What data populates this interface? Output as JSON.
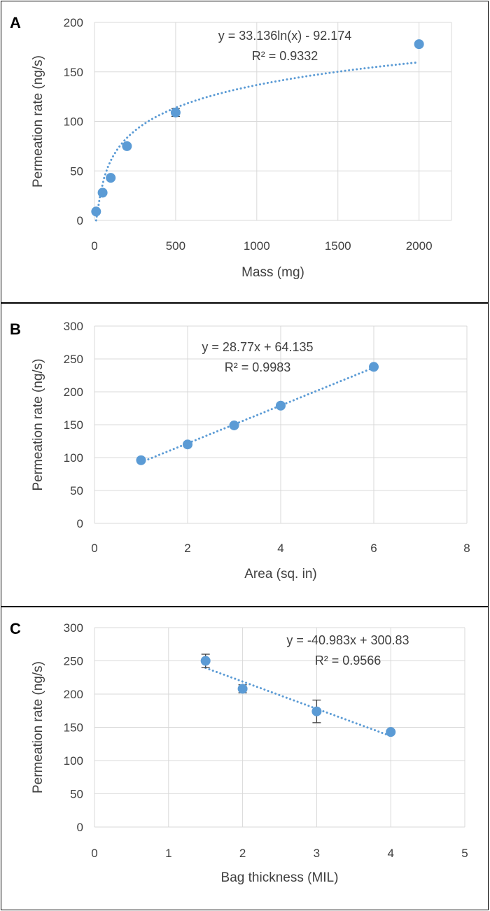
{
  "chart_data": [
    {
      "type": "scatter",
      "panel_label": "A",
      "xlabel": "Mass (mg)",
      "ylabel": "Permeation rate (ng/s)",
      "xlim": [
        0,
        2200
      ],
      "ylim": [
        0,
        200
      ],
      "xticks": [
        0,
        500,
        1000,
        1500,
        2000
      ],
      "yticks": [
        0,
        50,
        100,
        150,
        200
      ],
      "grid": true,
      "marker_color": "#5b9bd5",
      "points": [
        {
          "x": 10,
          "y": 9
        },
        {
          "x": 50,
          "y": 28
        },
        {
          "x": 100,
          "y": 43
        },
        {
          "x": 200,
          "y": 75
        },
        {
          "x": 500,
          "y": 109,
          "err": 4
        },
        {
          "x": 2000,
          "y": 178
        }
      ],
      "trendline": {
        "type": "log",
        "a": 33.136,
        "b": -92.174,
        "x_from": 10,
        "x_to": 2000
      },
      "equation": "y = 33.136ln(x) - 92.174",
      "r2": "R² = 0.9332"
    },
    {
      "type": "scatter",
      "panel_label": "B",
      "xlabel": "Area (sq. in)",
      "ylabel": "Permeation rate (ng/s)",
      "xlim": [
        0,
        8
      ],
      "ylim": [
        0,
        300
      ],
      "xticks": [
        0,
        2,
        4,
        6,
        8
      ],
      "yticks": [
        0,
        50,
        100,
        150,
        200,
        250,
        300
      ],
      "grid": true,
      "marker_color": "#5b9bd5",
      "points": [
        {
          "x": 1,
          "y": 96
        },
        {
          "x": 2,
          "y": 120
        },
        {
          "x": 3,
          "y": 149
        },
        {
          "x": 4,
          "y": 179
        },
        {
          "x": 6,
          "y": 238
        }
      ],
      "trendline": {
        "type": "linear",
        "m": 28.77,
        "b": 64.135,
        "x_from": 1,
        "x_to": 6
      },
      "equation": "y = 28.77x + 64.135",
      "r2": "R² = 0.9983"
    },
    {
      "type": "scatter",
      "panel_label": "C",
      "xlabel": "Bag thickness (MIL)",
      "ylabel": "Permeation rate (ng/s)",
      "xlim": [
        0,
        5
      ],
      "ylim": [
        0,
        300
      ],
      "xticks": [
        0,
        1,
        2,
        3,
        4,
        5
      ],
      "yticks": [
        0,
        50,
        100,
        150,
        200,
        250,
        300
      ],
      "grid": true,
      "marker_color": "#5b9bd5",
      "points": [
        {
          "x": 1.5,
          "y": 250,
          "err": 10
        },
        {
          "x": 2,
          "y": 208,
          "err": 6
        },
        {
          "x": 3,
          "y": 174,
          "err": 17
        },
        {
          "x": 4,
          "y": 143
        }
      ],
      "trendline": {
        "type": "linear",
        "m": -40.983,
        "b": 300.83,
        "x_from": 1.5,
        "x_to": 4
      },
      "equation": "y = -40.983x + 300.83",
      "r2": "R² = 0.9566"
    }
  ]
}
